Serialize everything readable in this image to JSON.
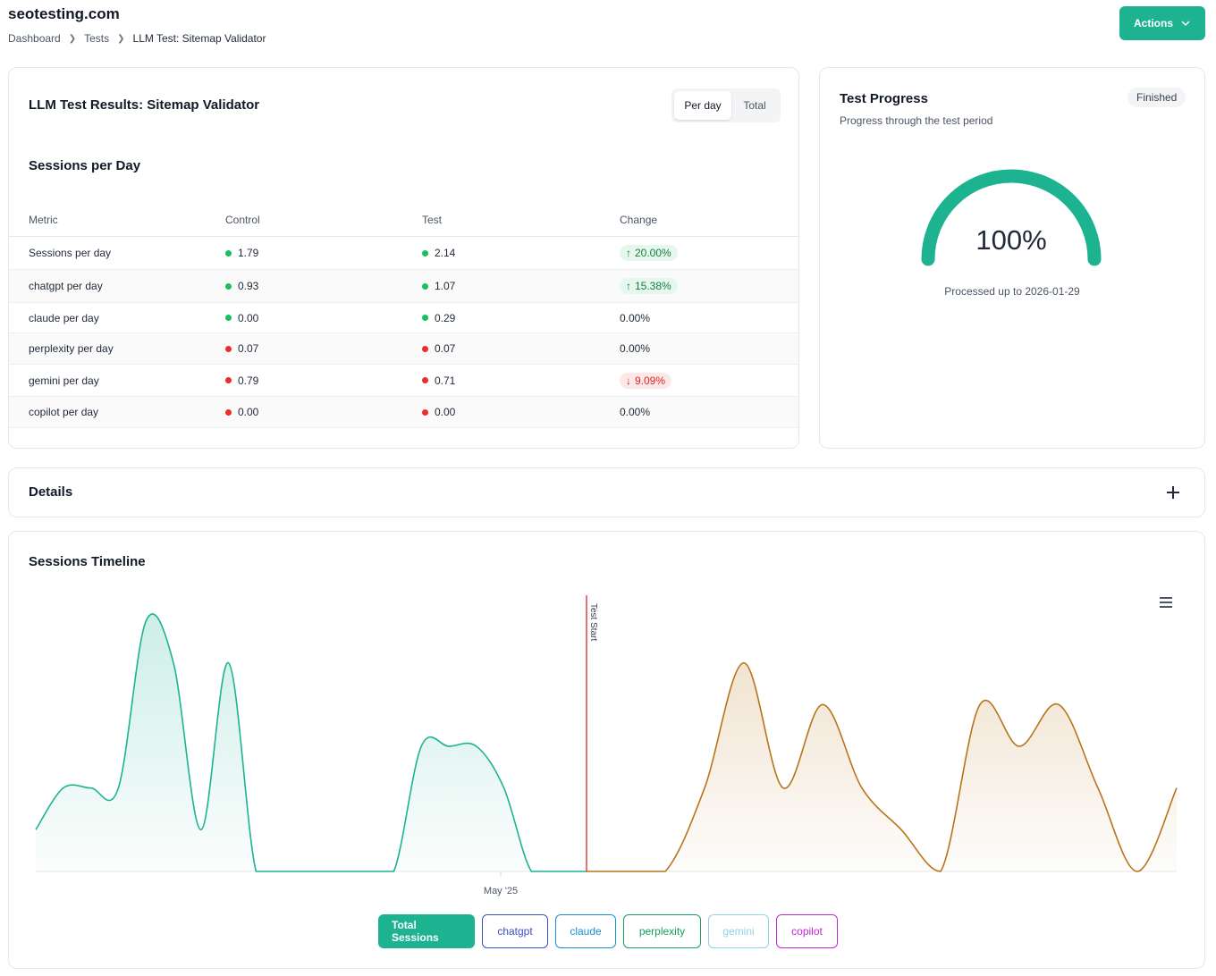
{
  "header": {
    "brand": "seotesting.com",
    "breadcrumb": [
      "Dashboard",
      "Tests",
      "LLM Test: Sitemap Validator"
    ],
    "actions_label": "Actions"
  },
  "results": {
    "title": "LLM Test Results: Sitemap Validator",
    "toggle": {
      "per_day": "Per day",
      "total": "Total"
    },
    "section_title": "Sessions per Day",
    "columns": [
      "Metric",
      "Control",
      "Test",
      "Change"
    ],
    "rows": [
      {
        "metric": "Sessions per day",
        "control": "1.79",
        "test": "2.14",
        "change": "20.00%",
        "trend": "up",
        "dot": "green"
      },
      {
        "metric": "chatgpt per day",
        "control": "0.93",
        "test": "1.07",
        "change": "15.38%",
        "trend": "up",
        "dot": "green"
      },
      {
        "metric": "claude per day",
        "control": "0.00",
        "test": "0.29",
        "change": "0.00%",
        "trend": "none",
        "dot": "green"
      },
      {
        "metric": "perplexity per day",
        "control": "0.07",
        "test": "0.07",
        "change": "0.00%",
        "trend": "none",
        "dot": "red"
      },
      {
        "metric": "gemini per day",
        "control": "0.79",
        "test": "0.71",
        "change": "9.09%",
        "trend": "down",
        "dot": "red"
      },
      {
        "metric": "copilot per day",
        "control": "0.00",
        "test": "0.00",
        "change": "0.00%",
        "trend": "none",
        "dot": "red"
      }
    ]
  },
  "progress": {
    "title": "Test Progress",
    "subtitle": "Progress through the test period",
    "status": "Finished",
    "percent_label": "100%",
    "percent": 100,
    "processed": "Processed up to 2026-01-29",
    "color": "#1db391"
  },
  "details": {
    "title": "Details"
  },
  "timeline": {
    "title": "Sessions Timeline",
    "legend": [
      "Total Sessions",
      "chatgpt",
      "claude",
      "perplexity",
      "gemini",
      "copilot"
    ]
  },
  "chart_data": {
    "type": "area",
    "title": "Sessions Timeline",
    "x_tick_labels": [
      "May '25"
    ],
    "annotation": "Test Start",
    "series": [
      {
        "name": "Control",
        "color": "#1db391",
        "values": [
          1,
          2,
          2,
          2,
          6,
          5,
          1,
          5,
          0,
          0,
          0,
          0,
          0,
          0,
          3,
          3,
          3,
          2,
          0,
          0,
          0
        ]
      },
      {
        "name": "Test",
        "color": "#b8741a",
        "values": [
          0,
          0,
          0,
          2,
          5,
          2,
          4,
          2,
          1,
          0,
          4,
          3,
          4,
          2,
          0,
          2
        ]
      }
    ]
  }
}
